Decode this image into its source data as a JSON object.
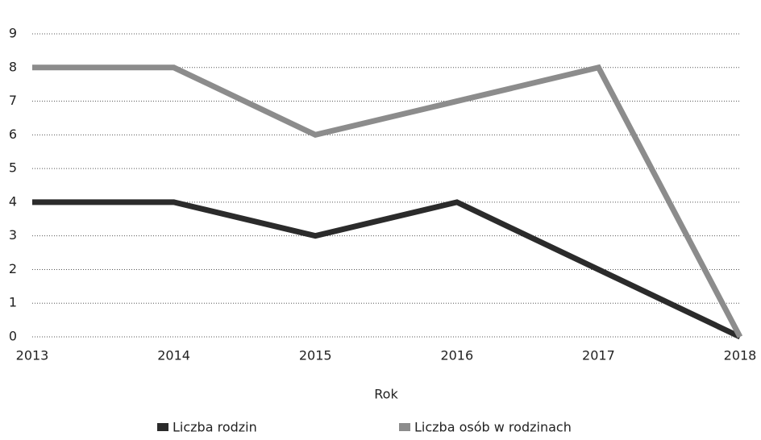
{
  "chart_data": {
    "type": "line",
    "categories": [
      "2013",
      "2014",
      "2015",
      "2016",
      "2017",
      "2018"
    ],
    "series": [
      {
        "name": "Liczba rodzin",
        "color": "#2b2b2b",
        "values": [
          4,
          4,
          3,
          4,
          2,
          0
        ]
      },
      {
        "name": "Liczba osób w rodzinach",
        "color": "#8c8c8c",
        "values": [
          8,
          8,
          6,
          7,
          8,
          0
        ]
      }
    ],
    "x_label": "Rok",
    "ylim": [
      0,
      9
    ],
    "yticks": [
      0,
      1,
      2,
      3,
      4,
      5,
      6,
      7,
      8,
      9
    ],
    "grid": true,
    "legend": "bottom"
  }
}
